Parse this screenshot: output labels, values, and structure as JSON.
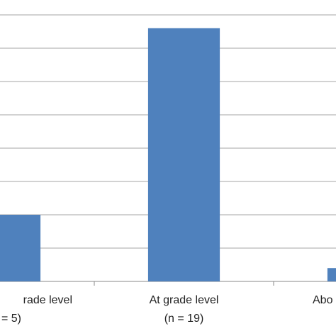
{
  "chart_data": {
    "type": "bar",
    "categories": [
      "rade level",
      "At grade level",
      "Abo"
    ],
    "category_sublabels": [
      "= 5)",
      "(n = 19)",
      null
    ],
    "values": [
      5,
      19,
      1
    ],
    "color": "#4f81bd",
    "ylim": [
      0,
      20
    ],
    "yticks": [
      0,
      2.5,
      5,
      7.5,
      10,
      12.5,
      15,
      17.5,
      20
    ],
    "grid": true
  }
}
